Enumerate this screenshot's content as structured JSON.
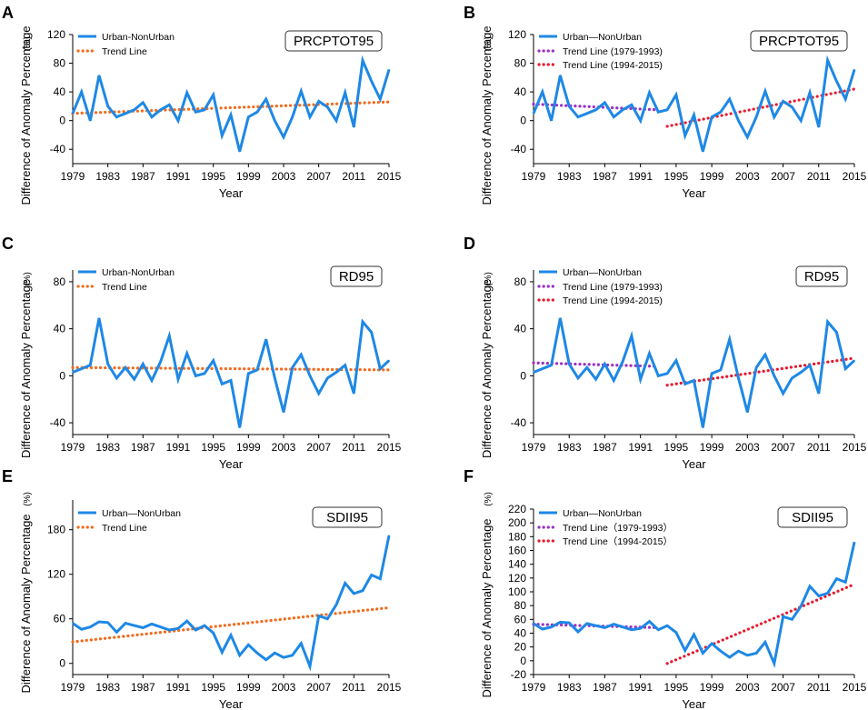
{
  "colors": {
    "series": "#1E88E5",
    "trend_single": "#F26B1D",
    "trend_early": "#9B2FC7",
    "trend_late": "#E8192C"
  },
  "chart_data": [
    {
      "panel": "A",
      "type": "line",
      "title": "PRCPTOT95",
      "xlabel": "Year",
      "ylabel": "Difference of Anomaly Percentage",
      "yunit": "(%)",
      "xlim": [
        1979,
        2015
      ],
      "ylim": [
        -60,
        120
      ],
      "yticks": [
        -40,
        0,
        40,
        80,
        120
      ],
      "xticks": [
        1979,
        1983,
        1987,
        1991,
        1995,
        1999,
        2003,
        2007,
        2011,
        2015
      ],
      "x": [
        1979,
        1980,
        1981,
        1982,
        1983,
        1984,
        1985,
        1986,
        1987,
        1988,
        1989,
        1990,
        1991,
        1992,
        1993,
        1994,
        1995,
        1996,
        1997,
        1998,
        1999,
        2000,
        2001,
        2002,
        2003,
        2004,
        2005,
        2006,
        2007,
        2008,
        2009,
        2010,
        2011,
        2012,
        2013,
        2014,
        2015
      ],
      "series": [
        {
          "name": "Urban-NonUrban",
          "style": "solid",
          "color": "#1E88E5",
          "values": [
            10,
            40,
            0,
            63,
            20,
            5,
            10,
            15,
            25,
            5,
            15,
            22,
            0,
            39,
            12,
            15,
            36,
            -21,
            8,
            -43,
            5,
            12,
            30,
            0,
            -23,
            5,
            41,
            5,
            27,
            19,
            0,
            39,
            -9,
            84,
            55,
            30,
            71
          ]
        }
      ],
      "trends": [
        {
          "name": "Trend Line",
          "color": "#F26B1D",
          "x": [
            1979,
            2015
          ],
          "y": [
            10,
            26
          ]
        }
      ]
    },
    {
      "panel": "B",
      "type": "line",
      "title": "PRCPTOT95",
      "xlabel": "Year",
      "ylabel": "Difference of Anomaly Percentage",
      "yunit": "(%)",
      "xlim": [
        1979,
        2015
      ],
      "ylim": [
        -60,
        120
      ],
      "yticks": [
        -40,
        0,
        40,
        80,
        120
      ],
      "xticks": [
        1979,
        1983,
        1987,
        1991,
        1995,
        1999,
        2003,
        2007,
        2011,
        2015
      ],
      "x": [
        1979,
        1980,
        1981,
        1982,
        1983,
        1984,
        1985,
        1986,
        1987,
        1988,
        1989,
        1990,
        1991,
        1992,
        1993,
        1994,
        1995,
        1996,
        1997,
        1998,
        1999,
        2000,
        2001,
        2002,
        2003,
        2004,
        2005,
        2006,
        2007,
        2008,
        2009,
        2010,
        2011,
        2012,
        2013,
        2014,
        2015
      ],
      "series": [
        {
          "name": "Urban—NonUrban",
          "style": "solid",
          "color": "#1E88E5",
          "values": [
            10,
            40,
            0,
            63,
            20,
            5,
            10,
            15,
            25,
            5,
            15,
            22,
            0,
            39,
            12,
            15,
            36,
            -21,
            8,
            -43,
            5,
            12,
            30,
            0,
            -23,
            5,
            41,
            5,
            27,
            19,
            0,
            39,
            -9,
            84,
            55,
            30,
            71
          ]
        }
      ],
      "trends": [
        {
          "name": "Trend Line (1979-1993)",
          "color": "#9B2FC7",
          "x": [
            1979,
            1993
          ],
          "y": [
            23,
            15
          ]
        },
        {
          "name": "Trend Line (1994-2015)",
          "color": "#E8192C",
          "x": [
            1994,
            2015
          ],
          "y": [
            -8,
            44
          ]
        }
      ]
    },
    {
      "panel": "C",
      "type": "line",
      "title": "RD95",
      "xlabel": "Year",
      "ylabel": "Difference of Anomaly Percentage",
      "yunit": "(%)",
      "xlim": [
        1979,
        2015
      ],
      "ylim": [
        -50,
        90
      ],
      "yticks": [
        -40,
        0,
        40,
        80
      ],
      "xticks": [
        1979,
        1983,
        1987,
        1991,
        1995,
        1999,
        2003,
        2007,
        2011,
        2015
      ],
      "x": [
        1979,
        1980,
        1981,
        1982,
        1983,
        1984,
        1985,
        1986,
        1987,
        1988,
        1989,
        1990,
        1991,
        1992,
        1993,
        1994,
        1995,
        1996,
        1997,
        1998,
        1999,
        2000,
        2001,
        2002,
        2003,
        2004,
        2005,
        2006,
        2007,
        2008,
        2009,
        2010,
        2011,
        2012,
        2013,
        2014,
        2015
      ],
      "series": [
        {
          "name": "Urban-NonUrban",
          "style": "solid",
          "color": "#1E88E5",
          "values": [
            3,
            6,
            9,
            49,
            10,
            -2,
            7,
            -3,
            10,
            -4,
            12,
            34,
            -3,
            19,
            0,
            2,
            13,
            -7,
            -4,
            -44,
            2,
            5,
            31,
            -2,
            -31,
            7,
            18,
            0,
            -15,
            -2,
            3,
            9,
            -15,
            46,
            37,
            6,
            13
          ]
        }
      ],
      "trends": [
        {
          "name": "Trend Line",
          "color": "#F26B1D",
          "x": [
            1979,
            2015
          ],
          "y": [
            7,
            5
          ]
        }
      ]
    },
    {
      "panel": "D",
      "type": "line",
      "title": "RD95",
      "xlabel": "Year",
      "ylabel": "Difference of Anomaly Percentage",
      "yunit": "(%)",
      "xlim": [
        1979,
        2015
      ],
      "ylim": [
        -50,
        90
      ],
      "yticks": [
        -40,
        0,
        40,
        80
      ],
      "xticks": [
        1979,
        1983,
        1987,
        1991,
        1995,
        1999,
        2003,
        2007,
        2011,
        2015
      ],
      "x": [
        1979,
        1980,
        1981,
        1982,
        1983,
        1984,
        1985,
        1986,
        1987,
        1988,
        1989,
        1990,
        1991,
        1992,
        1993,
        1994,
        1995,
        1996,
        1997,
        1998,
        1999,
        2000,
        2001,
        2002,
        2003,
        2004,
        2005,
        2006,
        2007,
        2008,
        2009,
        2010,
        2011,
        2012,
        2013,
        2014,
        2015
      ],
      "series": [
        {
          "name": "Urban—NonUrban",
          "style": "solid",
          "color": "#1E88E5",
          "values": [
            3,
            6,
            9,
            49,
            10,
            -2,
            7,
            -3,
            10,
            -4,
            12,
            34,
            -3,
            19,
            0,
            2,
            13,
            -7,
            -4,
            -44,
            2,
            5,
            31,
            -2,
            -31,
            7,
            18,
            0,
            -15,
            -2,
            3,
            9,
            -15,
            46,
            37,
            6,
            13
          ]
        }
      ],
      "trends": [
        {
          "name": "Trend Line (1979-1993)",
          "color": "#9B2FC7",
          "x": [
            1979,
            1993
          ],
          "y": [
            11,
            8
          ]
        },
        {
          "name": "Trend Line (1994-2015)",
          "color": "#E8192C",
          "x": [
            1994,
            2015
          ],
          "y": [
            -8,
            15
          ]
        }
      ]
    },
    {
      "panel": "E",
      "type": "line",
      "title": "SDII95",
      "xlabel": "Year",
      "ylabel": "Difference of Anomaly Percentage",
      "yunit": "(%)",
      "xlim": [
        1979,
        2015
      ],
      "ylim": [
        -15,
        220
      ],
      "yticks": [
        0,
        60,
        120,
        180
      ],
      "xticks": [
        1979,
        1983,
        1987,
        1991,
        1995,
        1999,
        2003,
        2007,
        2011,
        2015
      ],
      "x": [
        1979,
        1980,
        1981,
        1982,
        1983,
        1984,
        1985,
        1986,
        1987,
        1988,
        1989,
        1990,
        1991,
        1992,
        1993,
        1994,
        1995,
        1996,
        1997,
        1998,
        1999,
        2000,
        2001,
        2002,
        2003,
        2004,
        2005,
        2006,
        2007,
        2008,
        2009,
        2010,
        2011,
        2012,
        2013,
        2014,
        2015
      ],
      "series": [
        {
          "name": "Urban—NonUrban",
          "style": "solid",
          "color": "#1E88E5",
          "values": [
            54,
            46,
            49,
            56,
            55,
            42,
            54,
            51,
            48,
            53,
            49,
            45,
            47,
            57,
            45,
            51,
            41,
            15,
            38,
            11,
            25,
            14,
            5,
            14,
            8,
            11,
            27,
            -4,
            64,
            60,
            79,
            108,
            94,
            98,
            119,
            114,
            172
          ]
        }
      ],
      "trends": [
        {
          "name": "Trend Line",
          "color": "#F26B1D",
          "x": [
            1979,
            2015
          ],
          "y": [
            29,
            75
          ]
        }
      ]
    },
    {
      "panel": "F",
      "type": "line",
      "title": "SDII95",
      "xlabel": "Year",
      "ylabel": "Difference of Anomaly Percentage",
      "yunit": "(%)",
      "xlim": [
        1979,
        2015
      ],
      "ylim": [
        -20,
        220
      ],
      "yticks": [
        -20,
        0,
        20,
        40,
        60,
        80,
        100,
        120,
        140,
        160,
        180,
        200,
        220
      ],
      "xticks": [
        1979,
        1983,
        1987,
        1991,
        1995,
        1999,
        2003,
        2007,
        2011,
        2015
      ],
      "x": [
        1979,
        1980,
        1981,
        1982,
        1983,
        1984,
        1985,
        1986,
        1987,
        1988,
        1989,
        1990,
        1991,
        1992,
        1993,
        1994,
        1995,
        1996,
        1997,
        1998,
        1999,
        2000,
        2001,
        2002,
        2003,
        2004,
        2005,
        2006,
        2007,
        2008,
        2009,
        2010,
        2011,
        2012,
        2013,
        2014,
        2015
      ],
      "series": [
        {
          "name": "Urban—NonUrban",
          "style": "solid",
          "color": "#1E88E5",
          "values": [
            54,
            46,
            49,
            56,
            55,
            42,
            54,
            51,
            48,
            53,
            49,
            45,
            47,
            57,
            45,
            51,
            41,
            15,
            38,
            11,
            25,
            14,
            5,
            14,
            8,
            11,
            27,
            -4,
            64,
            60,
            79,
            108,
            94,
            98,
            119,
            114,
            172
          ]
        }
      ],
      "trends": [
        {
          "name": "Trend Line（1979-1993）",
          "color": "#9B2FC7",
          "x": [
            1979,
            1993
          ],
          "y": [
            53,
            48
          ]
        },
        {
          "name": "Trend Line（1994-2015）",
          "color": "#E8192C",
          "x": [
            1994,
            2015
          ],
          "y": [
            -4,
            111
          ]
        }
      ]
    }
  ]
}
